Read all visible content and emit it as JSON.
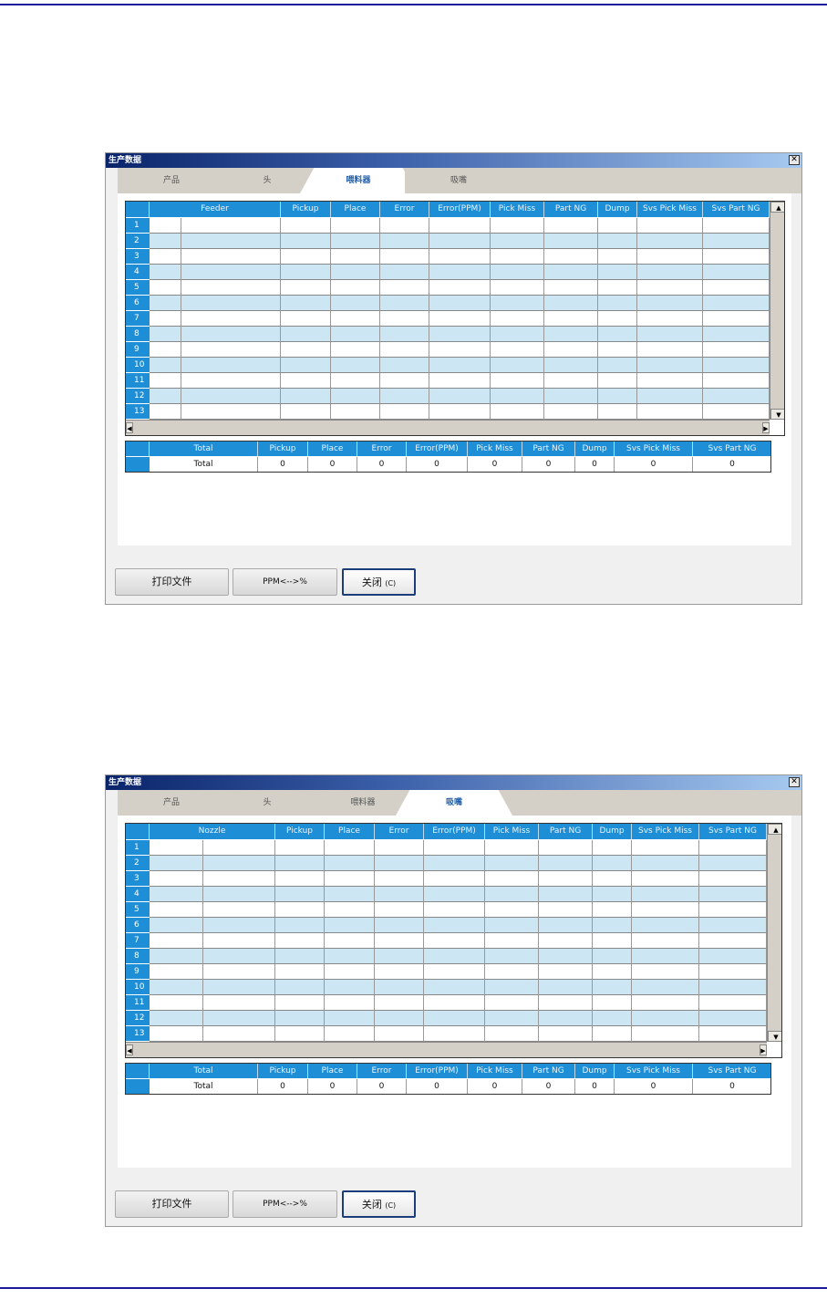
{
  "colors": {
    "header_blue": "#1e8fd6",
    "row_alt": "#cce6f4",
    "title_start": "#0a246a"
  },
  "dialogs": [
    {
      "title": "生产数据",
      "close_icon": "close-x-icon",
      "tabs": [
        {
          "label": "产品"
        },
        {
          "label": "头"
        },
        {
          "label": "喂料器"
        },
        {
          "label": "吸嘴"
        }
      ],
      "active_tab": 2,
      "grid_columns": [
        "Feeder",
        "Pickup",
        "Place",
        "Error",
        "Error(PPM)",
        "Pick Miss",
        "Part NG",
        "Dump",
        "Svs Pick Miss",
        "Svs Part NG"
      ],
      "rows": [
        "1",
        "2",
        "3",
        "4",
        "5",
        "6",
        "7",
        "8",
        "9",
        "10",
        "11",
        "12",
        "13"
      ],
      "total_columns": [
        "Total",
        "Pickup",
        "Place",
        "Error",
        "Error(PPM)",
        "Pick Miss",
        "Part NG",
        "Dump",
        "Svs Pick Miss",
        "Svs Part NG"
      ],
      "total_row": [
        "Total",
        "0",
        "0",
        "0",
        "0",
        "0",
        "0",
        "0",
        "0",
        "0"
      ],
      "buttons": {
        "print": "打印文件",
        "ppm": "PPM<-->%",
        "close": "关闭",
        "close_key": "(C)"
      }
    },
    {
      "title": "生产数据",
      "close_icon": "close-x-icon",
      "tabs": [
        {
          "label": "产品"
        },
        {
          "label": "头"
        },
        {
          "label": "喂料器"
        },
        {
          "label": "吸嘴"
        }
      ],
      "active_tab": 3,
      "grid_columns": [
        "Nozzle",
        "Pickup",
        "Place",
        "Error",
        "Error(PPM)",
        "Pick Miss",
        "Part NG",
        "Dump",
        "Svs Pick Miss",
        "Svs Part NG"
      ],
      "rows": [
        "1",
        "2",
        "3",
        "4",
        "5",
        "6",
        "7",
        "8",
        "9",
        "10",
        "11",
        "12",
        "13"
      ],
      "total_columns": [
        "Total",
        "Pickup",
        "Place",
        "Error",
        "Error(PPM)",
        "Pick Miss",
        "Part NG",
        "Dump",
        "Svs Pick Miss",
        "Svs Part NG"
      ],
      "total_row": [
        "Total",
        "0",
        "0",
        "0",
        "0",
        "0",
        "0",
        "0",
        "0",
        "0"
      ],
      "buttons": {
        "print": "打印文件",
        "ppm": "PPM<-->%",
        "close": "关闭",
        "close_key": "(C)"
      }
    }
  ]
}
